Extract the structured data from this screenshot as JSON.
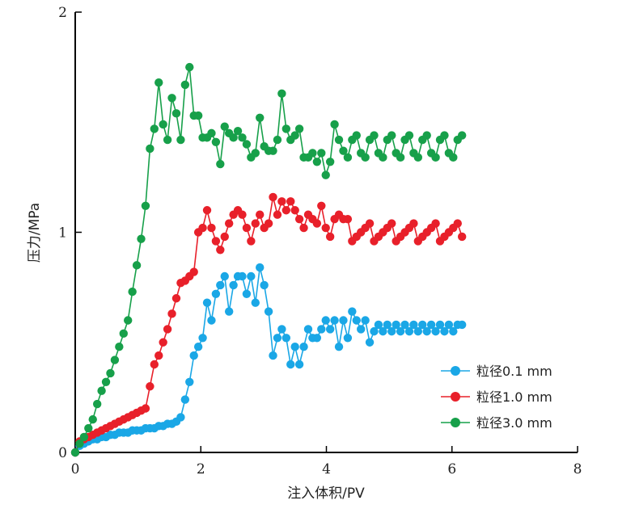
{
  "chart_data": {
    "type": "line",
    "title": "",
    "xlabel": "注入体积/PV",
    "ylabel": "压力/MPa",
    "xlim": [
      0,
      8
    ],
    "ylim": [
      0,
      2
    ],
    "x_ticks": [
      "0",
      "2",
      "4",
      "6",
      "8"
    ],
    "y_ticks": [
      "0",
      "1",
      "2"
    ],
    "grid": false,
    "legend_position": "bottom-right",
    "series": [
      {
        "name": "粒径0.1 mm",
        "color": "#1aa7e6",
        "x": [
          0.0,
          0.07,
          0.14,
          0.21,
          0.28,
          0.35,
          0.42,
          0.49,
          0.56,
          0.63,
          0.7,
          0.77,
          0.84,
          0.91,
          0.98,
          1.05,
          1.12,
          1.19,
          1.26,
          1.33,
          1.4,
          1.47,
          1.54,
          1.61,
          1.68,
          1.75,
          1.82,
          1.89,
          1.96,
          2.03,
          2.1,
          2.17,
          2.24,
          2.31,
          2.38,
          2.45,
          2.52,
          2.59,
          2.66,
          2.73,
          2.8,
          2.87,
          2.94,
          3.01,
          3.08,
          3.15,
          3.22,
          3.29,
          3.36,
          3.43,
          3.5,
          3.57,
          3.64,
          3.71,
          3.78,
          3.85,
          3.92,
          3.99,
          4.06,
          4.13,
          4.2,
          4.27,
          4.34,
          4.41,
          4.48,
          4.55,
          4.62,
          4.69,
          4.76,
          4.83,
          4.9,
          4.97,
          5.04,
          5.11,
          5.18,
          5.25,
          5.32,
          5.39,
          5.46,
          5.53,
          5.6,
          5.67,
          5.74,
          5.81,
          5.88,
          5.95,
          6.02,
          6.09,
          6.16
        ],
        "y": [
          0.0,
          0.03,
          0.04,
          0.05,
          0.06,
          0.06,
          0.07,
          0.07,
          0.08,
          0.08,
          0.09,
          0.09,
          0.09,
          0.1,
          0.1,
          0.1,
          0.11,
          0.11,
          0.11,
          0.12,
          0.12,
          0.13,
          0.13,
          0.14,
          0.16,
          0.24,
          0.32,
          0.44,
          0.48,
          0.52,
          0.68,
          0.6,
          0.72,
          0.76,
          0.8,
          0.64,
          0.76,
          0.8,
          0.8,
          0.72,
          0.8,
          0.68,
          0.84,
          0.76,
          0.64,
          0.44,
          0.52,
          0.56,
          0.52,
          0.4,
          0.48,
          0.4,
          0.48,
          0.56,
          0.52,
          0.52,
          0.56,
          0.6,
          0.56,
          0.6,
          0.48,
          0.6,
          0.52,
          0.64,
          0.6,
          0.56,
          0.6,
          0.5,
          0.55,
          0.58,
          0.55,
          0.58,
          0.55,
          0.58,
          0.55,
          0.58,
          0.55,
          0.58,
          0.55,
          0.58,
          0.55,
          0.58,
          0.55,
          0.58,
          0.55,
          0.58,
          0.55,
          0.58,
          0.58
        ]
      },
      {
        "name": "粒径1.0 mm",
        "color": "#e8202a",
        "x": [
          0.0,
          0.07,
          0.14,
          0.21,
          0.28,
          0.35,
          0.42,
          0.49,
          0.56,
          0.63,
          0.7,
          0.77,
          0.84,
          0.91,
          0.98,
          1.05,
          1.12,
          1.19,
          1.26,
          1.33,
          1.4,
          1.47,
          1.54,
          1.61,
          1.68,
          1.75,
          1.82,
          1.89,
          1.96,
          2.03,
          2.1,
          2.17,
          2.24,
          2.31,
          2.38,
          2.45,
          2.52,
          2.59,
          2.66,
          2.73,
          2.8,
          2.87,
          2.94,
          3.01,
          3.08,
          3.15,
          3.22,
          3.29,
          3.36,
          3.43,
          3.5,
          3.57,
          3.64,
          3.71,
          3.78,
          3.85,
          3.92,
          3.99,
          4.06,
          4.13,
          4.2,
          4.27,
          4.34,
          4.41,
          4.48,
          4.55,
          4.62,
          4.69,
          4.76,
          4.83,
          4.9,
          4.97,
          5.04,
          5.11,
          5.18,
          5.25,
          5.32,
          5.39,
          5.46,
          5.53,
          5.6,
          5.67,
          5.74,
          5.81,
          5.88,
          5.95,
          6.02,
          6.09,
          6.16
        ],
        "y": [
          0.0,
          0.05,
          0.06,
          0.07,
          0.08,
          0.09,
          0.1,
          0.11,
          0.12,
          0.13,
          0.14,
          0.15,
          0.16,
          0.17,
          0.18,
          0.19,
          0.2,
          0.3,
          0.4,
          0.44,
          0.5,
          0.56,
          0.63,
          0.7,
          0.77,
          0.78,
          0.8,
          0.82,
          1.0,
          1.02,
          1.1,
          1.02,
          0.96,
          0.92,
          0.98,
          1.04,
          1.08,
          1.1,
          1.08,
          1.02,
          0.96,
          1.04,
          1.08,
          1.02,
          1.04,
          1.16,
          1.08,
          1.14,
          1.1,
          1.14,
          1.1,
          1.06,
          1.02,
          1.08,
          1.06,
          1.04,
          1.12,
          1.02,
          0.98,
          1.06,
          1.08,
          1.06,
          1.06,
          0.96,
          0.98,
          1.0,
          1.02,
          1.04,
          0.96,
          0.98,
          1.0,
          1.02,
          1.04,
          0.96,
          0.98,
          1.0,
          1.02,
          1.04,
          0.96,
          0.98,
          1.0,
          1.02,
          1.04,
          0.96,
          0.98,
          1.0,
          1.02,
          1.04,
          0.98
        ]
      },
      {
        "name": "粒径3.0 mm",
        "color": "#17a04a",
        "x": [
          0.0,
          0.07,
          0.14,
          0.21,
          0.28,
          0.35,
          0.42,
          0.49,
          0.56,
          0.63,
          0.7,
          0.77,
          0.84,
          0.91,
          0.98,
          1.05,
          1.12,
          1.19,
          1.26,
          1.33,
          1.4,
          1.47,
          1.54,
          1.61,
          1.68,
          1.75,
          1.82,
          1.89,
          1.96,
          2.03,
          2.1,
          2.17,
          2.24,
          2.31,
          2.38,
          2.45,
          2.52,
          2.59,
          2.66,
          2.73,
          2.8,
          2.87,
          2.94,
          3.01,
          3.08,
          3.15,
          3.22,
          3.29,
          3.36,
          3.43,
          3.5,
          3.57,
          3.64,
          3.71,
          3.78,
          3.85,
          3.92,
          3.99,
          4.06,
          4.13,
          4.2,
          4.27,
          4.34,
          4.41,
          4.48,
          4.55,
          4.62,
          4.69,
          4.76,
          4.83,
          4.9,
          4.97,
          5.04,
          5.11,
          5.18,
          5.25,
          5.32,
          5.39,
          5.46,
          5.53,
          5.6,
          5.67,
          5.74,
          5.81,
          5.88,
          5.95,
          6.02,
          6.09,
          6.16
        ],
        "y": [
          0.0,
          0.04,
          0.07,
          0.11,
          0.15,
          0.22,
          0.28,
          0.32,
          0.36,
          0.42,
          0.48,
          0.54,
          0.6,
          0.73,
          0.85,
          0.97,
          1.12,
          1.38,
          1.47,
          1.68,
          1.49,
          1.42,
          1.61,
          1.54,
          1.42,
          1.67,
          1.75,
          1.53,
          1.53,
          1.43,
          1.43,
          1.45,
          1.41,
          1.31,
          1.48,
          1.45,
          1.43,
          1.46,
          1.43,
          1.4,
          1.34,
          1.36,
          1.52,
          1.39,
          1.37,
          1.37,
          1.42,
          1.63,
          1.47,
          1.42,
          1.44,
          1.47,
          1.34,
          1.34,
          1.36,
          1.32,
          1.36,
          1.26,
          1.32,
          1.49,
          1.42,
          1.37,
          1.34,
          1.42,
          1.44,
          1.36,
          1.34,
          1.42,
          1.44,
          1.36,
          1.34,
          1.42,
          1.44,
          1.36,
          1.34,
          1.42,
          1.44,
          1.36,
          1.34,
          1.42,
          1.44,
          1.36,
          1.34,
          1.42,
          1.44,
          1.36,
          1.34,
          1.42,
          1.44
        ]
      }
    ]
  }
}
